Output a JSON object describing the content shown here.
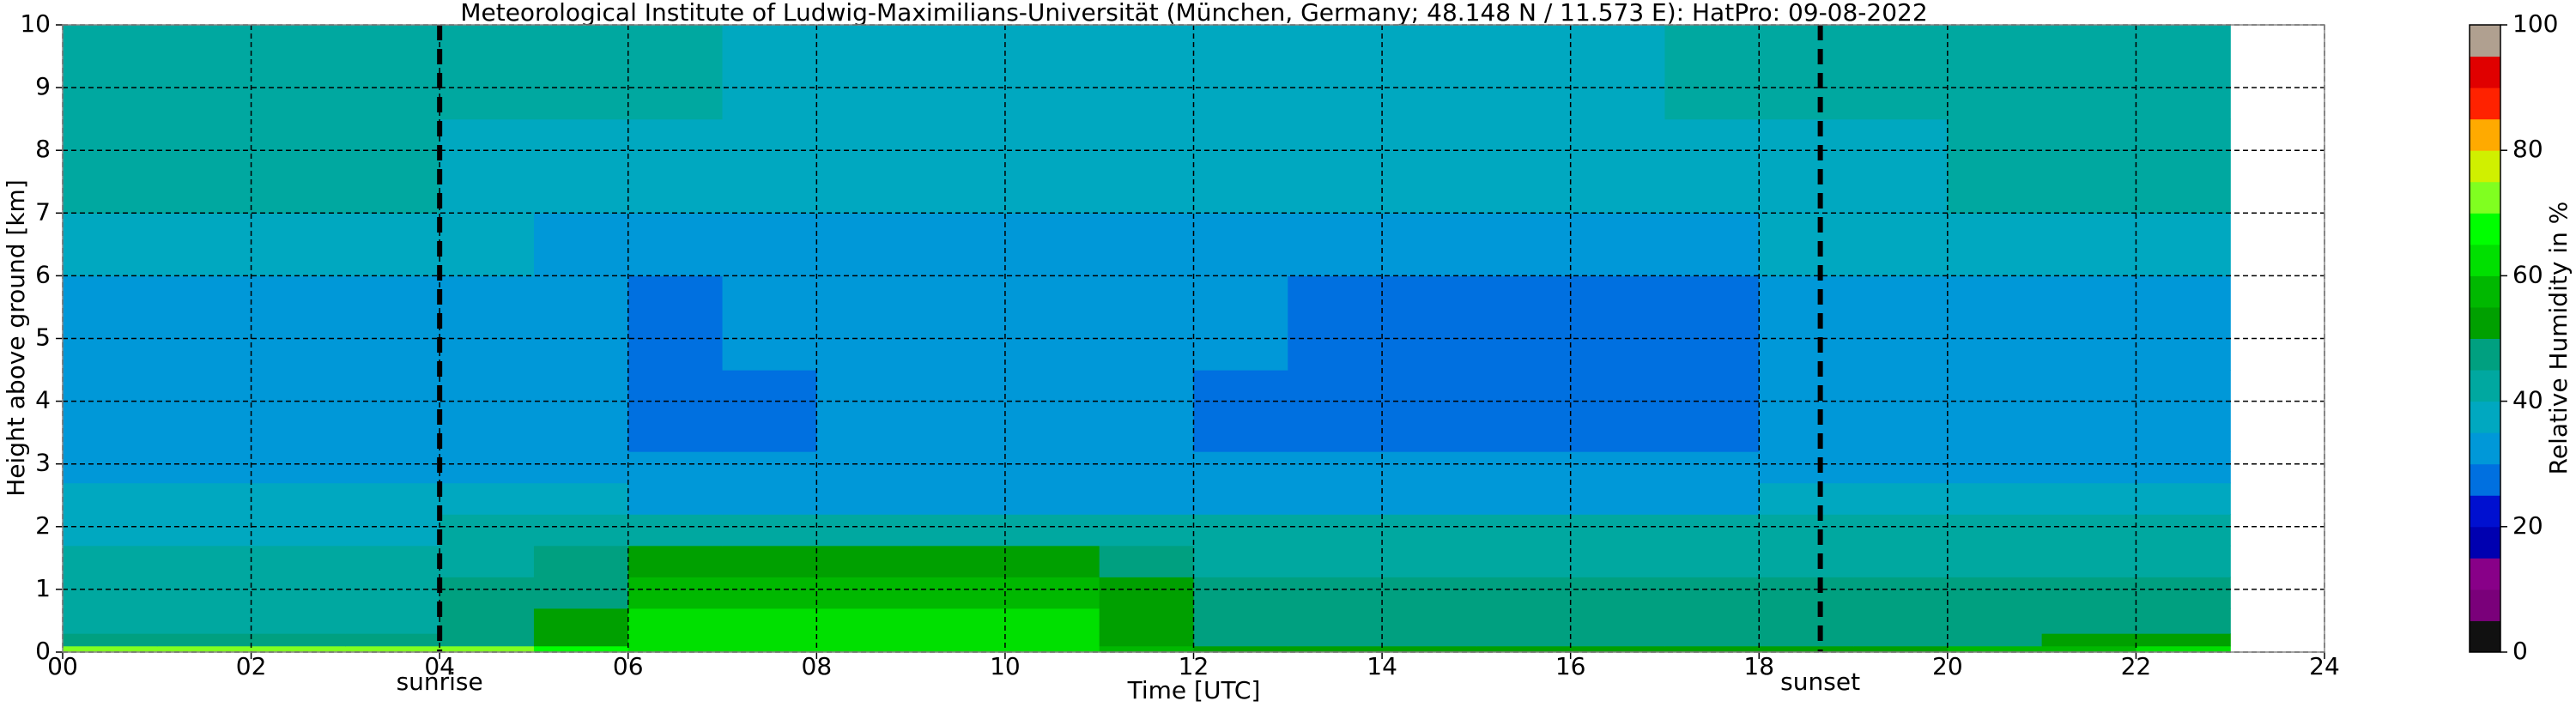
{
  "chart_data": {
    "type": "heatmap",
    "title": "Meteorological Institute of Ludwig-Maximilians-Universität (München, Germany; 48.148 N / 11.573 E):    HatPro: 09-08-2022",
    "x_label": "Time [UTC]",
    "y_label": "Height above ground [km]",
    "colorbar_label": "Relative Humidity in %",
    "xlim": [
      0,
      24
    ],
    "xticks": [
      {
        "value": 0,
        "label": "00"
      },
      {
        "value": 2,
        "label": "02"
      },
      {
        "value": 4,
        "label": "04"
      },
      {
        "value": 6,
        "label": "06"
      },
      {
        "value": 8,
        "label": "08"
      },
      10,
      12,
      14,
      16,
      18,
      20,
      22,
      24
    ],
    "ylim": [
      0,
      10
    ],
    "yticks": [
      0,
      1,
      2,
      3,
      4,
      5,
      6,
      7,
      8,
      9,
      10
    ],
    "clim": [
      0,
      100
    ],
    "cticks": [
      0,
      20,
      40,
      60,
      80,
      100
    ],
    "grid": true,
    "colormap": [
      "#111111",
      "#7a007a",
      "#880088",
      "#0000b0",
      "#0010d0",
      "#0070e0",
      "#0098d8",
      "#00a8c0",
      "#00a8a0",
      "#00a080",
      "#00a000",
      "#00b800",
      "#00e000",
      "#00ff00",
      "#80ff20",
      "#d0f000",
      "#ffaa00",
      "#ff2200",
      "#e00000",
      "#b0a090"
    ],
    "annotations": [
      {
        "x": 4,
        "label": "sunrise"
      },
      {
        "x": 18.65,
        "label": "sunset"
      }
    ],
    "x_bins": [
      0,
      1,
      2,
      3,
      4,
      5,
      6,
      7,
      8,
      9,
      10,
      11,
      12,
      13,
      14,
      15,
      16,
      17,
      18,
      19,
      20,
      21,
      22,
      23
    ],
    "y_bins": [
      0,
      0.1,
      0.3,
      0.7,
      1.2,
      1.7,
      2.2,
      2.7,
      3.2,
      4.5,
      6,
      7,
      8.5,
      10
    ],
    "values": [
      [
        72,
        72,
        72,
        72,
        70,
        68,
        63,
        62,
        62,
        62,
        62,
        55,
        50,
        50,
        50,
        50,
        50,
        50,
        50,
        50,
        55,
        58,
        60
      ],
      [
        46,
        46,
        47,
        47,
        48,
        50,
        60,
        62,
        62,
        62,
        60,
        52,
        48,
        47,
        47,
        47,
        47,
        47,
        47,
        47,
        48,
        50,
        50
      ],
      [
        44,
        44,
        44,
        44,
        46,
        50,
        60,
        61,
        61,
        61,
        60,
        52,
        48,
        47,
        47,
        47,
        47,
        47,
        47,
        48,
        48,
        49,
        48
      ],
      [
        42,
        42,
        42,
        42,
        45,
        48,
        55,
        57,
        57,
        57,
        56,
        50,
        48,
        47,
        47,
        47,
        47,
        47,
        47,
        47,
        47,
        47,
        46
      ],
      [
        40,
        40,
        40,
        40,
        42,
        45,
        50,
        50,
        50,
        50,
        50,
        46,
        44,
        43,
        43,
        43,
        43,
        43,
        43,
        44,
        44,
        44,
        43
      ],
      [
        39,
        39,
        39,
        39,
        40,
        40,
        42,
        42,
        42,
        42,
        42,
        41,
        40,
        40,
        40,
        40,
        40,
        40,
        40,
        41,
        41,
        42,
        40
      ],
      [
        37,
        37,
        37,
        37,
        36,
        35,
        34,
        34,
        34,
        34,
        34,
        34,
        34,
        34,
        34,
        34,
        34,
        34,
        35,
        36,
        37,
        37,
        37
      ],
      [
        34,
        34,
        34,
        34,
        33,
        32,
        31,
        31,
        31,
        31,
        31,
        31,
        31,
        31,
        31,
        31,
        31,
        31,
        32,
        33,
        34,
        34,
        34
      ],
      [
        32,
        32,
        32,
        32,
        31,
        30,
        27,
        29,
        30,
        30,
        30,
        30,
        29,
        29,
        29,
        29,
        29,
        29,
        30,
        31,
        31,
        32,
        33
      ],
      [
        33,
        33,
        33,
        33,
        32,
        31,
        29,
        30,
        31,
        31,
        31,
        31,
        30,
        29,
        29,
        29,
        29,
        29,
        30,
        31,
        32,
        33,
        34
      ],
      [
        37,
        37,
        36,
        36,
        35,
        34,
        34,
        34,
        34,
        34,
        34,
        34,
        34,
        34,
        34,
        34,
        34,
        34,
        35,
        36,
        37,
        38,
        39
      ],
      [
        41,
        41,
        41,
        40,
        39,
        38,
        37,
        37,
        37,
        37,
        37,
        37,
        37,
        37,
        37,
        37,
        37,
        38,
        38,
        39,
        40,
        41,
        41
      ],
      [
        42,
        42,
        42,
        42,
        42,
        41,
        40,
        39,
        39,
        39,
        39,
        39,
        39,
        39,
        39,
        39,
        39,
        40,
        40,
        41,
        42,
        42,
        42
      ]
    ]
  }
}
